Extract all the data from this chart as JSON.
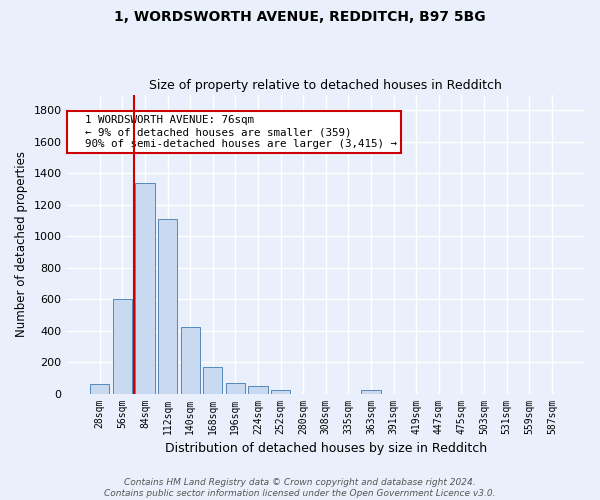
{
  "title1": "1, WORDSWORTH AVENUE, REDDITCH, B97 5BG",
  "title2": "Size of property relative to detached houses in Redditch",
  "xlabel": "Distribution of detached houses by size in Redditch",
  "ylabel": "Number of detached properties",
  "categories": [
    "28sqm",
    "56sqm",
    "84sqm",
    "112sqm",
    "140sqm",
    "168sqm",
    "196sqm",
    "224sqm",
    "252sqm",
    "280sqm",
    "308sqm",
    "335sqm",
    "363sqm",
    "391sqm",
    "419sqm",
    "447sqm",
    "475sqm",
    "503sqm",
    "531sqm",
    "559sqm",
    "587sqm"
  ],
  "values": [
    60,
    600,
    1340,
    1110,
    420,
    170,
    65,
    45,
    20,
    0,
    0,
    0,
    20,
    0,
    0,
    0,
    0,
    0,
    0,
    0,
    0
  ],
  "bar_color": "#c9d9f0",
  "bar_edge_color": "#5588bb",
  "vline_x": 1.5,
  "vline_color": "#cc0000",
  "annotation_text": "  1 WORDSWORTH AVENUE: 76sqm\n  ← 9% of detached houses are smaller (359)\n  90% of semi-detached houses are larger (3,415) →",
  "annotation_box_color": "#ffffff",
  "annotation_box_edge": "#cc0000",
  "bg_color": "#eaf0fb",
  "grid_color": "#ffffff",
  "footer": "Contains HM Land Registry data © Crown copyright and database right 2024.\nContains public sector information licensed under the Open Government Licence v3.0.",
  "ylim": [
    0,
    1900
  ],
  "yticks": [
    0,
    200,
    400,
    600,
    800,
    1000,
    1200,
    1400,
    1600,
    1800
  ]
}
